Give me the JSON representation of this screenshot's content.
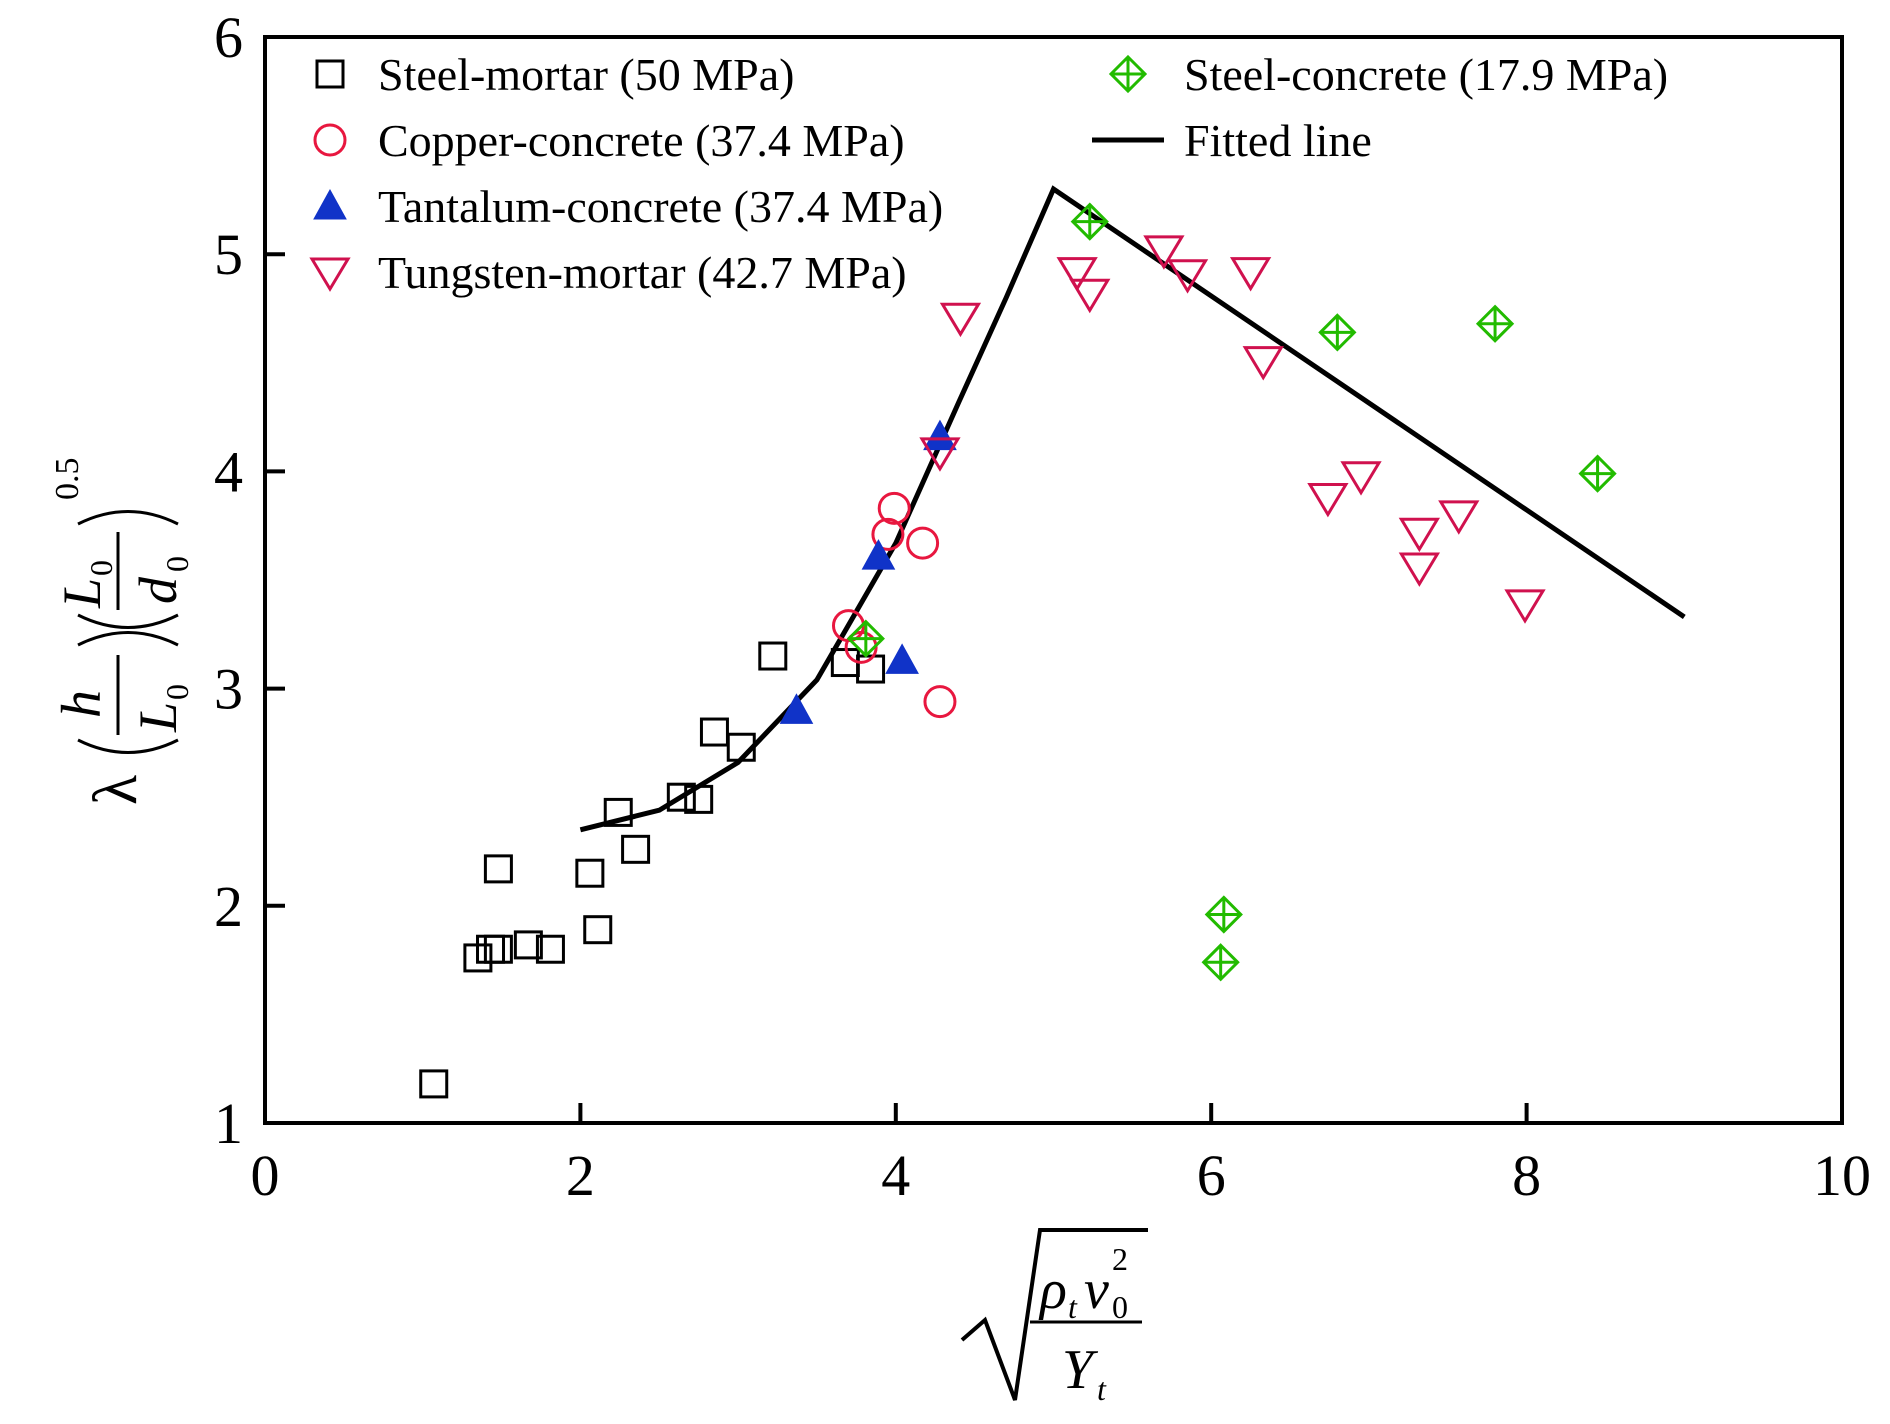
{
  "chart_data": {
    "type": "scatter",
    "title": "",
    "xlabel": "√(ρ_t v_0² / Y_t)",
    "ylabel": "λ (h/L_0)(L_0/d_0)^0.5",
    "xlim": [
      0,
      10
    ],
    "ylim": [
      1,
      6
    ],
    "x_ticks": [
      "0",
      "2",
      "4",
      "6",
      "8",
      "10"
    ],
    "y_ticks": [
      "1",
      "2",
      "3",
      "4",
      "5",
      "6"
    ],
    "legend_position": "top (inside plot, two columns)",
    "grid": false,
    "series": [
      {
        "name": "Steel-mortar (50 MPa)",
        "marker": "open-square",
        "color": "#000000",
        "points": [
          [
            1.07,
            1.18
          ],
          [
            1.35,
            1.76
          ],
          [
            1.43,
            1.8
          ],
          [
            1.48,
            1.8
          ],
          [
            1.48,
            2.17
          ],
          [
            1.67,
            1.82
          ],
          [
            1.81,
            1.8
          ],
          [
            2.06,
            2.15
          ],
          [
            2.11,
            1.89
          ],
          [
            2.24,
            2.43
          ],
          [
            2.35,
            2.26
          ],
          [
            2.64,
            2.5
          ],
          [
            2.75,
            2.49
          ],
          [
            2.85,
            2.8
          ],
          [
            3.02,
            2.73
          ],
          [
            3.22,
            3.15
          ],
          [
            3.68,
            3.12
          ],
          [
            3.84,
            3.09
          ]
        ]
      },
      {
        "name": "Copper-concrete (37.4 MPa)",
        "marker": "open-circle",
        "color": "#e8173f",
        "points": [
          [
            3.7,
            3.29
          ],
          [
            3.78,
            3.19
          ],
          [
            3.95,
            3.71
          ],
          [
            3.99,
            3.83
          ],
          [
            4.17,
            3.67
          ],
          [
            4.28,
            2.94
          ]
        ]
      },
      {
        "name": "Tantalum-concrete (37.4 MPa)",
        "marker": "filled-triangle-up",
        "color": "#1033c8",
        "points": [
          [
            3.37,
            2.9
          ],
          [
            3.89,
            3.61
          ],
          [
            4.04,
            3.13
          ],
          [
            4.28,
            4.16
          ]
        ]
      },
      {
        "name": "Tungsten-mortar (42.7 MPa)",
        "marker": "open-triangle-down",
        "color": "#d0114e",
        "points": [
          [
            4.41,
            4.71
          ],
          [
            4.28,
            4.09
          ],
          [
            5.15,
            4.92
          ],
          [
            5.23,
            4.82
          ],
          [
            5.7,
            5.02
          ],
          [
            5.85,
            4.91
          ],
          [
            6.25,
            4.92
          ],
          [
            6.33,
            4.51
          ],
          [
            6.74,
            3.88
          ],
          [
            6.95,
            3.98
          ],
          [
            7.32,
            3.72
          ],
          [
            7.32,
            3.56
          ],
          [
            7.57,
            3.8
          ],
          [
            7.99,
            3.39
          ]
        ]
      },
      {
        "name": "Steel-concrete (17.9 MPa)",
        "marker": "diamond-plus",
        "color": "#22bb00",
        "points": [
          [
            5.23,
            5.15
          ],
          [
            3.81,
            3.23
          ],
          [
            6.08,
            1.96
          ],
          [
            6.06,
            1.74
          ],
          [
            6.8,
            4.64
          ],
          [
            7.8,
            4.68
          ],
          [
            8.45,
            3.99
          ]
        ]
      },
      {
        "name": "Fitted line",
        "marker": "line",
        "color": "#000000",
        "points": [
          [
            2.0,
            2.35
          ],
          [
            2.5,
            2.44
          ],
          [
            3.0,
            2.66
          ],
          [
            3.5,
            3.04
          ],
          [
            4.0,
            3.67
          ],
          [
            4.4,
            4.32
          ],
          [
            4.7,
            4.8
          ],
          [
            5.0,
            5.3
          ],
          [
            9.0,
            3.33
          ]
        ]
      }
    ]
  }
}
